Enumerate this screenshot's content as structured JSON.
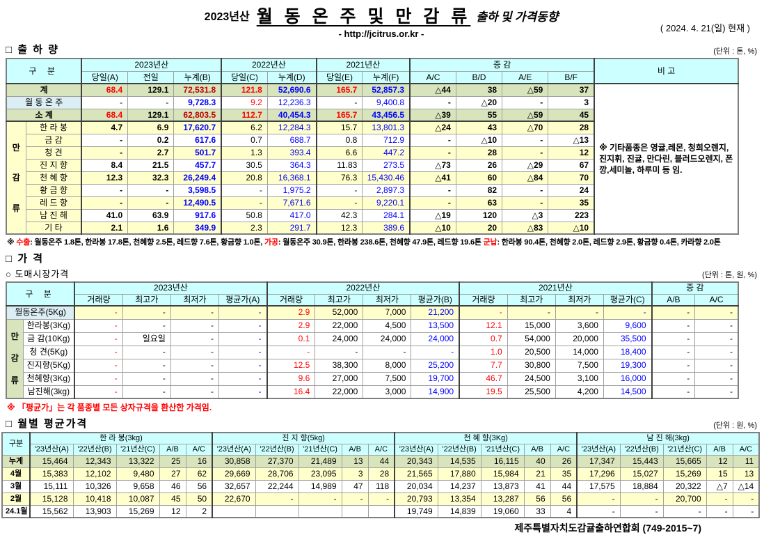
{
  "theme": {
    "header_bg": "#ccffff",
    "green_bg": "#d8e4bc",
    "yellow_bg": "#ffffcc",
    "blue_label_bg": "#daeef3",
    "red": "#ff0000",
    "dark_red": "#c00000",
    "blue": "#0000ff",
    "border_in": "#a0a0a0",
    "border_thick": "#404040",
    "border_out": "#7f7f7f"
  },
  "header": {
    "title_year": "2023년산",
    "title_main": "월 동 온 주 및 만 감 류",
    "title_suffix": "출하 및 가격동향",
    "url": "- http://jcitrus.or.kr -",
    "date": "( 2024.  4.  21(일) 현재 )"
  },
  "shipment": {
    "section_title": "□ 출 하 량",
    "unit": "(단위 : 톤, %)",
    "gubun": "구    분",
    "year_groups": [
      "2023년산",
      "2022년산",
      "2021년산"
    ],
    "change_group": "증    감",
    "remark_header": "비 고",
    "sub_columns": [
      "당일(A)",
      "전일",
      "누계(B)",
      "당일(C)",
      "누계(D)",
      "당일(E)",
      "누계(F)",
      "A/C",
      "B/D",
      "A/E",
      "B/F"
    ],
    "group_label": "만감류",
    "remark": "※ 기타품종은 영귤,레몬, 청희오렌지, 진지휘, 진귤, 만다린, 블러드오렌지, 폰깡,세미놀, 하루미 등 임.",
    "rows": [
      {
        "label": "계",
        "type": "total",
        "values": [
          "68.4",
          "129.1",
          "72,531.8",
          "121.8",
          "52,690.6",
          "165.7",
          "52,857.3",
          "△44",
          "38",
          "△59",
          "37"
        ]
      },
      {
        "label": "월 동 온 주",
        "type": "winter",
        "values": [
          "-",
          "-",
          "9,728.3",
          "9.2",
          "12,236.3",
          "-",
          "9,400.8",
          "-",
          "△20",
          "-",
          "3"
        ]
      },
      {
        "label": "소      계",
        "type": "total",
        "values": [
          "68.4",
          "129.1",
          "62,803.5",
          "112.7",
          "40,454.3",
          "165.7",
          "43,456.5",
          "△39",
          "55",
          "△59",
          "45"
        ]
      },
      {
        "label": "한 라 봉",
        "type": "item",
        "alt": true,
        "values": [
          "4.7",
          "6.9",
          "17,620.7",
          "6.2",
          "12,284.3",
          "15.7",
          "13,801.3",
          "△24",
          "43",
          "△70",
          "28"
        ]
      },
      {
        "label": "금      감",
        "type": "item",
        "alt": false,
        "values": [
          "-",
          "0.2",
          "617.6",
          "0.7",
          "688.7",
          "0.8",
          "712.9",
          "-",
          "△10",
          "-",
          "△13"
        ]
      },
      {
        "label": "청      견",
        "type": "item",
        "alt": true,
        "values": [
          "-",
          "2.7",
          "501.7",
          "1.3",
          "393.4",
          "6.6",
          "447.2",
          "-",
          "28",
          "-",
          "12"
        ]
      },
      {
        "label": "진 지 향",
        "type": "item",
        "alt": false,
        "values": [
          "8.4",
          "21.5",
          "457.7",
          "30.5",
          "364.3",
          "11.83",
          "273.5",
          "△73",
          "26",
          "△29",
          "67"
        ]
      },
      {
        "label": "천 혜 향",
        "type": "item",
        "alt": true,
        "values": [
          "12.3",
          "32.3",
          "26,249.4",
          "20.8",
          "16,368.1",
          "76.3",
          "15,430.46",
          "△41",
          "60",
          "△84",
          "70"
        ]
      },
      {
        "label": "황 금 향",
        "type": "item",
        "alt": false,
        "values": [
          "-",
          "-",
          "3,598.5",
          "-",
          "1,975.2",
          "-",
          "2,897.3",
          "-",
          "82",
          "-",
          "24"
        ]
      },
      {
        "label": "레 드 향",
        "type": "item",
        "alt": true,
        "values": [
          "-",
          "-",
          "12,490.5",
          "-",
          "7,671.6",
          "-",
          "9,220.1",
          "-",
          "63",
          "-",
          "35"
        ]
      },
      {
        "label": "남 진 해",
        "type": "item",
        "alt": false,
        "values": [
          "41.0",
          "63.9",
          "917.6",
          "50.8",
          "417.0",
          "42.3",
          "284.1",
          "△19",
          "120",
          "△3",
          "223"
        ]
      },
      {
        "label": "기      타",
        "type": "item",
        "alt": true,
        "values": [
          "2.1",
          "1.6",
          "349.9",
          "2.3",
          "291.7",
          "12.3",
          "389.6",
          "△10",
          "20",
          "△83",
          "△10"
        ]
      }
    ],
    "footnote": [
      {
        "text": "※ ",
        "color": "black"
      },
      {
        "text": "수출",
        "color": "red"
      },
      {
        "text": ": 월동온주 1.8톤, 한라봉 17.8톤, 천혜향 2.5톤, 레드향 7.6톤, 황금향 1.0톤, ",
        "color": "black"
      },
      {
        "text": "가공",
        "color": "red"
      },
      {
        "text": ": 월동온주 30.9톤, 한라봉 238.6톤, 천혜향 47.9톤, 레드향 19.6톤 ",
        "color": "black"
      },
      {
        "text": "군납",
        "color": "red"
      },
      {
        "text": ": 한라봉 90.4톤, 천혜향 2.0톤, 레드향 2.9톤, 황금향 0.4톤, 카라향 2.0톤",
        "color": "black"
      }
    ]
  },
  "price": {
    "section_title": "□ 가    격",
    "subsection": "○ 도매시장가격",
    "unit": "(단위 : 톤, 원, %)",
    "gubun": "구    분",
    "year_groups": [
      "2023년산",
      "2022년산",
      "2021년산"
    ],
    "change_group": "증  감",
    "sub_columns": [
      "거래량",
      "최고가",
      "최저가",
      "평균가(A)",
      "거래량",
      "최고가",
      "최저가",
      "평균가(B)",
      "거래량",
      "최고가",
      "최저가",
      "평균가(C)",
      "A/B",
      "A/C"
    ],
    "group_label": "만감류",
    "note": "※ 「평균가」는 각 품종별 모든 상자규격을 환산한 가격임.",
    "rows": [
      {
        "label": "월동온주(5Kg)",
        "type": "winter",
        "values": [
          "-",
          "-",
          "-",
          "-",
          "2.9",
          "52,000",
          "7,000",
          "21,200",
          "-",
          "-",
          "-",
          "-",
          "-",
          "-"
        ]
      },
      {
        "label": "한라봉(3Kg)",
        "type": "item",
        "values": [
          "-",
          "-",
          "-",
          "-",
          "2.9",
          "22,000",
          "4,500",
          "13,500",
          "12.1",
          "15,000",
          "3,600",
          "9,600",
          "-",
          "-"
        ]
      },
      {
        "label": "금 감(10Kg)",
        "type": "item",
        "values": [
          "-",
          "일요일",
          "-",
          "-",
          "0.1",
          "24,000",
          "24,000",
          "24,000",
          "0.7",
          "54,000",
          "20,000",
          "35,500",
          "-",
          "-"
        ]
      },
      {
        "label": "청   견(5Kg)",
        "type": "item",
        "values": [
          "-",
          "-",
          "-",
          "-",
          "-",
          "-",
          "-",
          "-",
          "1.0",
          "20,500",
          "14,000",
          "18,400",
          "-",
          "-"
        ]
      },
      {
        "label": "진지향(5Kg)",
        "type": "item",
        "values": [
          "-",
          "-",
          "-",
          "-",
          "12.5",
          "38,300",
          "8,000",
          "25,200",
          "7.7",
          "30,800",
          "7,500",
          "19,300",
          "-",
          "-"
        ]
      },
      {
        "label": "천혜향(3Kg)",
        "type": "item",
        "values": [
          "-",
          "-",
          "-",
          "-",
          "9.6",
          "27,000",
          "7,500",
          "19,700",
          "46.7",
          "24,500",
          "3,100",
          "16,000",
          "-",
          "-"
        ]
      },
      {
        "label": "남진해(3kg)",
        "type": "item",
        "values": [
          "-",
          "-",
          "-",
          "-",
          "16.4",
          "22,000",
          "3,000",
          "14,900",
          "19.5",
          "25,500",
          "4,200",
          "14,500",
          "-",
          "-"
        ]
      }
    ]
  },
  "monthly": {
    "section_title": "□ 월별 평균가격",
    "unit": "(단위 : 원, %)",
    "gubun": "구분",
    "groups": [
      "한 라 봉(3kg)",
      "진 지 향(5kg)",
      "천 혜 향(3Kg)",
      "남 진 해(3kg)"
    ],
    "sub_columns": [
      "'23년산(A)",
      "'22년산(B)",
      "'21년산(C)",
      "A/B",
      "A/C"
    ],
    "rows": [
      {
        "label": "누계",
        "type": "total",
        "values": [
          "15,464",
          "12,343",
          "13,322",
          "25",
          "16",
          "30,858",
          "27,370",
          "21,489",
          "13",
          "44",
          "20,343",
          "14,535",
          "16,115",
          "40",
          "26",
          "17,347",
          "15,443",
          "15,665",
          "12",
          "11"
        ]
      },
      {
        "label": "4월",
        "type": "alt",
        "values": [
          "15,383",
          "12,102",
          "9,480",
          "27",
          "62",
          "29,669",
          "28,706",
          "23,095",
          "3",
          "28",
          "21,565",
          "17,880",
          "15,984",
          "21",
          "35",
          "17,296",
          "15,027",
          "15,269",
          "15",
          "13"
        ]
      },
      {
        "label": "3월",
        "type": "plain",
        "values": [
          "15,111",
          "10,326",
          "9,658",
          "46",
          "56",
          "32,657",
          "22,244",
          "14,989",
          "47",
          "118",
          "20,034",
          "14,237",
          "13,873",
          "41",
          "44",
          "17,575",
          "18,884",
          "20,322",
          "△7",
          "△14"
        ]
      },
      {
        "label": "2월",
        "type": "alt",
        "values": [
          "15,128",
          "10,418",
          "10,087",
          "45",
          "50",
          "22,670",
          "-",
          "-",
          "-",
          "-",
          "20,793",
          "13,354",
          "13,287",
          "56",
          "56",
          "-",
          "-",
          "20,700",
          "-",
          "-"
        ]
      },
      {
        "label": "24.1월",
        "type": "plain",
        "values": [
          "15,562",
          "13,903",
          "15,269",
          "12",
          "2",
          "",
          "",
          "",
          "",
          "",
          "19,749",
          "14,839",
          "19,060",
          "33",
          "4",
          "-",
          "-",
          "-",
          "-",
          "-"
        ]
      }
    ]
  },
  "footer": "제주특별자치도감귤출하연합회 (749-2015~7)"
}
